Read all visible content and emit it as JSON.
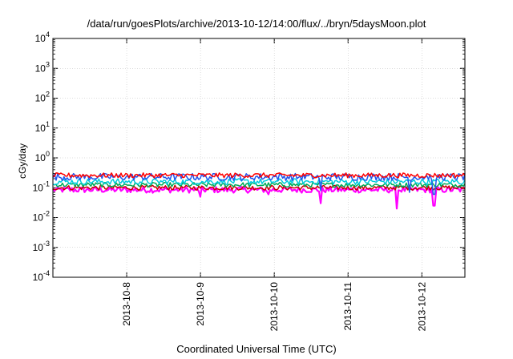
{
  "chart_data": {
    "type": "line",
    "title": "/data/run/goesPlots/archive/2013-10-12/14:00/flux/../bryn/5daysMoon.plot",
    "xlabel": "Coordinated Universal Time (UTC)",
    "ylabel": "cGy/day",
    "yscale": "log",
    "ylim": [
      0.0001,
      10000
    ],
    "xlim": [
      "2013-10-07 00:00",
      "2013-10-12 14:00"
    ],
    "x_ticks": [
      "2013-10-8",
      "2013-10-9",
      "2013-10-10",
      "2013-10-11",
      "2013-10-12"
    ],
    "y_ticks": [
      {
        "base": "10",
        "exp": "-4",
        "value": 0.0001
      },
      {
        "base": "10",
        "exp": "-3",
        "value": 0.001
      },
      {
        "base": "10",
        "exp": "-2",
        "value": 0.01
      },
      {
        "base": "10",
        "exp": "-1",
        "value": 0.1
      },
      {
        "base": "10",
        "exp": "0",
        "value": 1
      },
      {
        "base": "10",
        "exp": "1",
        "value": 10
      },
      {
        "base": "10",
        "exp": "2",
        "value": 100
      },
      {
        "base": "10",
        "exp": "3",
        "value": 1000
      },
      {
        "base": "10",
        "exp": "4",
        "value": 10000
      }
    ],
    "grid": true,
    "legend": "none",
    "series": [
      {
        "color": "#ff00ff",
        "level": 0.085,
        "jitter": 0.1,
        "dips": [
          {
            "x": "2013-10-09 00:00",
            "y": 0.05
          },
          {
            "x": "2013-10-09 22:00",
            "y": 0.06
          },
          {
            "x": "2013-10-10 15:00",
            "y": 0.03
          },
          {
            "x": "2013-10-11 16:00",
            "y": 0.02
          },
          {
            "x": "2013-10-12 04:00",
            "y": 0.025
          }
        ]
      },
      {
        "color": "#cc0000",
        "level": 0.1,
        "jitter": 0.08,
        "dips": []
      },
      {
        "color": "#00aa55",
        "level": 0.125,
        "jitter": 0.08,
        "dips": []
      },
      {
        "color": "#00ccdd",
        "level": 0.16,
        "jitter": 0.1,
        "dips": []
      },
      {
        "color": "#2255ee",
        "level": 0.23,
        "jitter": 0.12,
        "dips": [
          {
            "x": "2013-10-10 15:00",
            "y": 0.08
          },
          {
            "x": "2013-10-11 20:00",
            "y": 0.07
          },
          {
            "x": "2013-10-12 04:00",
            "y": 0.06
          }
        ]
      },
      {
        "color": "#ff0000",
        "level": 0.26,
        "jitter": 0.08,
        "dips": []
      }
    ]
  }
}
